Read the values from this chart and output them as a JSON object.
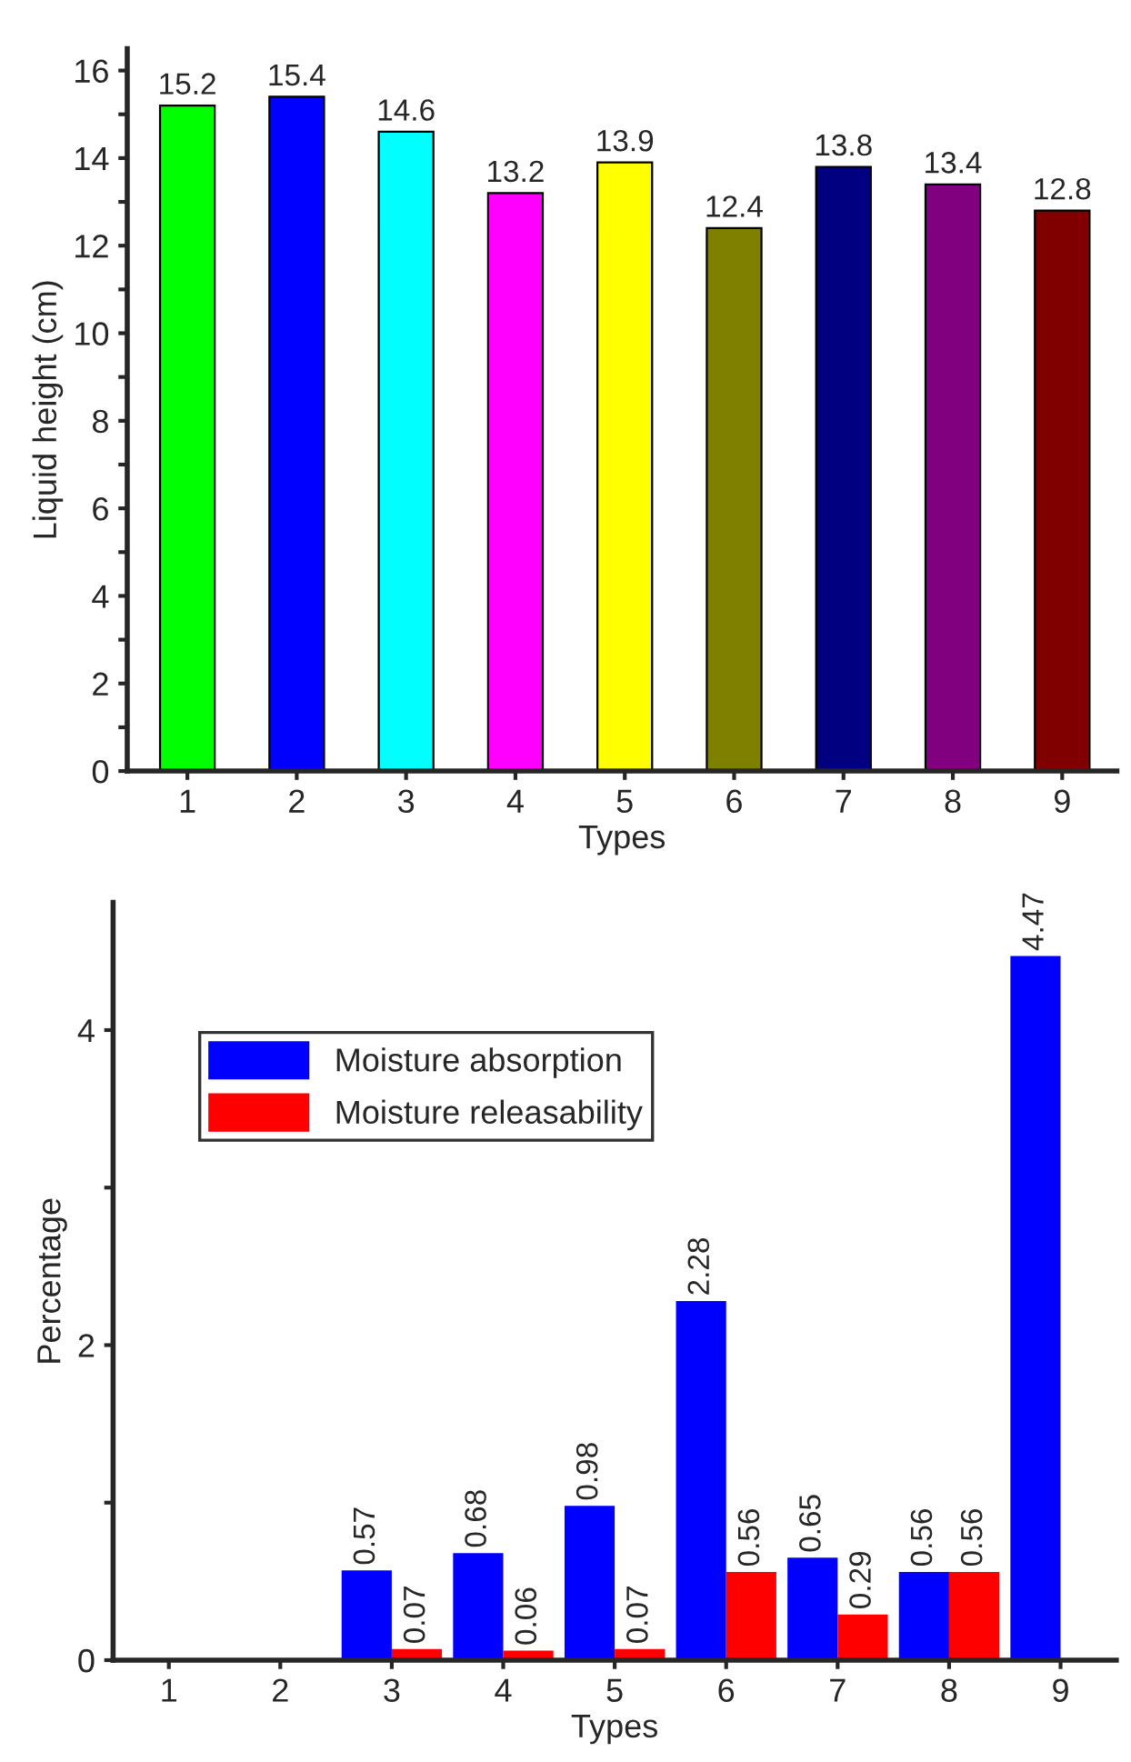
{
  "chart_data": [
    {
      "type": "bar",
      "xlabel": "Types",
      "ylabel": "Liquid height (cm)",
      "categories": [
        "1",
        "2",
        "3",
        "4",
        "5",
        "6",
        "7",
        "8",
        "9"
      ],
      "values": [
        15.2,
        15.4,
        14.6,
        13.2,
        13.9,
        12.4,
        13.8,
        13.4,
        12.8
      ],
      "colors": [
        "#00ff00",
        "#0000ff",
        "#00ffff",
        "#ff00ff",
        "#ffff00",
        "#808000",
        "#000080",
        "#800080",
        "#800000"
      ],
      "data_labels": true,
      "ylim": [
        0,
        16.5
      ],
      "yticks": [
        0,
        {
          "value": 1,
          "label": null
        },
        2,
        {
          "value": 3,
          "label": null
        },
        4,
        {
          "value": 5,
          "label": null
        },
        6,
        {
          "value": 7,
          "label": null
        },
        8,
        {
          "value": 9,
          "label": null
        },
        10,
        {
          "value": 11,
          "label": null
        },
        12,
        {
          "value": 13,
          "label": null
        },
        14,
        {
          "value": 15,
          "label": null
        },
        16
      ],
      "grid": false,
      "legend": false
    },
    {
      "type": "bar",
      "xlabel": "Types",
      "ylabel": "Percentage",
      "categories": [
        "1",
        "2",
        "3",
        "4",
        "5",
        "6",
        "7",
        "8",
        "9"
      ],
      "series": [
        {
          "name": "Moisture absorption",
          "color": "#0000ff",
          "values": [
            null,
            null,
            0.57,
            0.68,
            0.98,
            2.28,
            0.65,
            0.56,
            4.47
          ]
        },
        {
          "name": "Moisture releasability",
          "color": "#ff0000",
          "values": [
            null,
            null,
            0.07,
            0.06,
            0.07,
            0.56,
            0.29,
            0.56,
            null
          ]
        }
      ],
      "data_labels": true,
      "ylim": [
        0,
        4.81
      ],
      "yticks": [
        0,
        {
          "value": 1,
          "label": null
        },
        2,
        {
          "value": 3,
          "label": null
        },
        4
      ],
      "grid": false,
      "legend": "top left"
    }
  ]
}
